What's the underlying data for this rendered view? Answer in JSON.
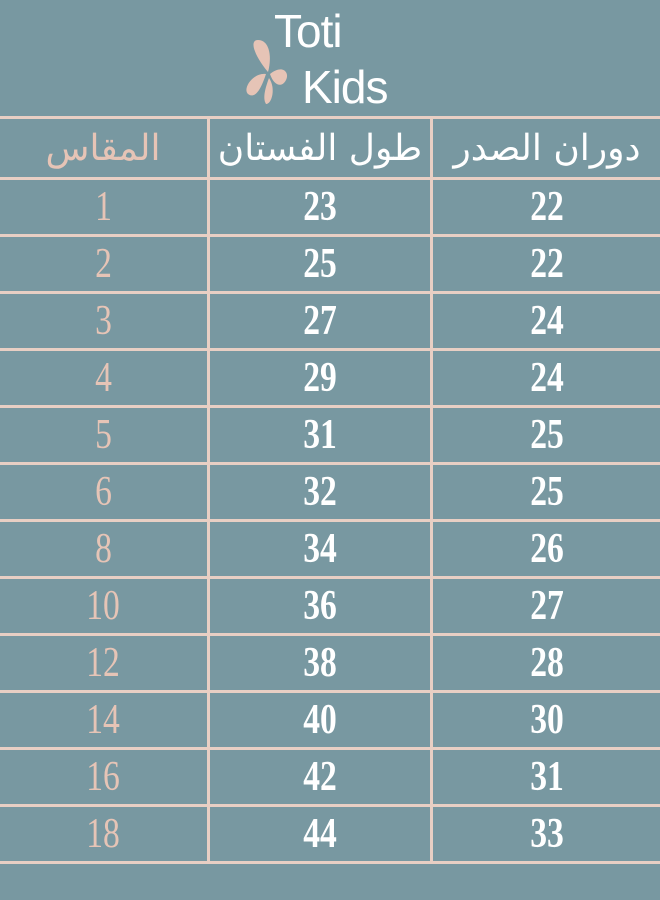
{
  "brand": {
    "line1": "Toti",
    "line2": "Kids",
    "logo_icon": "butterfly-icon",
    "colors": {
      "background": "#7898a1",
      "accent": "#e6c4b6",
      "text": "#ffffff"
    }
  },
  "table": {
    "headers": [
      "المقاس",
      "طول الفستان",
      "دوران الصدر"
    ],
    "rows": [
      [
        "1",
        "23",
        "22"
      ],
      [
        "2",
        "25",
        "22"
      ],
      [
        "3",
        "27",
        "24"
      ],
      [
        "4",
        "29",
        "24"
      ],
      [
        "5",
        "31",
        "25"
      ],
      [
        "6",
        "32",
        "25"
      ],
      [
        "8",
        "34",
        "26"
      ],
      [
        "10",
        "36",
        "27"
      ],
      [
        "12",
        "38",
        "28"
      ],
      [
        "14",
        "40",
        "30"
      ],
      [
        "16",
        "42",
        "31"
      ],
      [
        "18",
        "44",
        "33"
      ]
    ]
  }
}
